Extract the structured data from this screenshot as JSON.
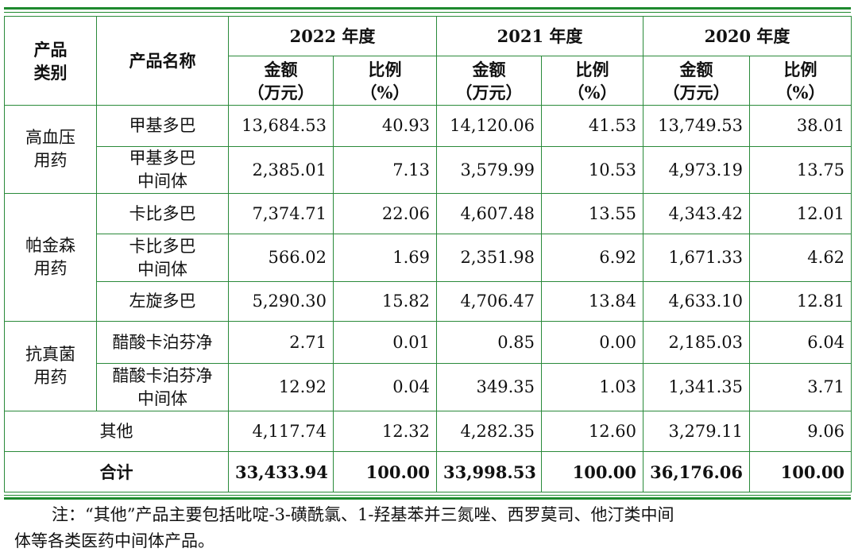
{
  "header": {
    "category": [
      "产品",
      "类别"
    ],
    "product_name": "产品名称",
    "years": [
      "2022 年度",
      "2021 年度",
      "2020 年度"
    ],
    "amount": [
      "金额",
      "（万元）"
    ],
    "ratio": [
      "比例",
      "（%）"
    ]
  },
  "groups": [
    {
      "category": [
        "高血压",
        "用药"
      ],
      "rows": [
        {
          "name": [
            "甲基多巴"
          ],
          "values": [
            "13,684.53",
            "40.93",
            "14,120.06",
            "41.53",
            "13,749.53",
            "38.01"
          ]
        },
        {
          "name": [
            "甲基多巴",
            "中间体"
          ],
          "values": [
            "2,385.01",
            "7.13",
            "3,579.99",
            "10.53",
            "4,973.19",
            "13.75"
          ]
        }
      ]
    },
    {
      "category": [
        "帕金森",
        "用药"
      ],
      "rows": [
        {
          "name": [
            "卡比多巴"
          ],
          "values": [
            "7,374.71",
            "22.06",
            "4,607.48",
            "13.55",
            "4,343.42",
            "12.01"
          ]
        },
        {
          "name": [
            "卡比多巴",
            "中间体"
          ],
          "values": [
            "566.02",
            "1.69",
            "2,351.98",
            "6.92",
            "1,671.33",
            "4.62"
          ]
        },
        {
          "name": [
            "左旋多巴"
          ],
          "values": [
            "5,290.30",
            "15.82",
            "4,706.47",
            "13.84",
            "4,633.10",
            "12.81"
          ]
        }
      ]
    },
    {
      "category": [
        "抗真菌",
        "用药"
      ],
      "rows": [
        {
          "name": [
            "醋酸卡泊芬净"
          ],
          "values": [
            "2.71",
            "0.01",
            "0.85",
            "0.00",
            "2,185.03",
            "6.04"
          ]
        },
        {
          "name": [
            "醋酸卡泊芬净",
            "中间体"
          ],
          "values": [
            "12.92",
            "0.04",
            "349.35",
            "1.03",
            "1,341.35",
            "3.71"
          ]
        }
      ]
    }
  ],
  "other": {
    "label": "其他",
    "values": [
      "4,117.74",
      "12.32",
      "4,282.35",
      "12.60",
      "3,279.11",
      "9.06"
    ]
  },
  "total": {
    "label": "合计",
    "values": [
      "33,433.94",
      "100.00",
      "33,998.53",
      "100.00",
      "36,176.06",
      "100.00"
    ]
  },
  "note": {
    "line1": "注：“其他”产品主要包括吡啶-3-磺酰氯、1-羟基苯并三氮唑、西罗莫司、他汀类中间",
    "line2": "体等各类医药中间体产品。"
  },
  "colors": {
    "rule": "#1e8a2e",
    "border": "#2a8a3a"
  }
}
